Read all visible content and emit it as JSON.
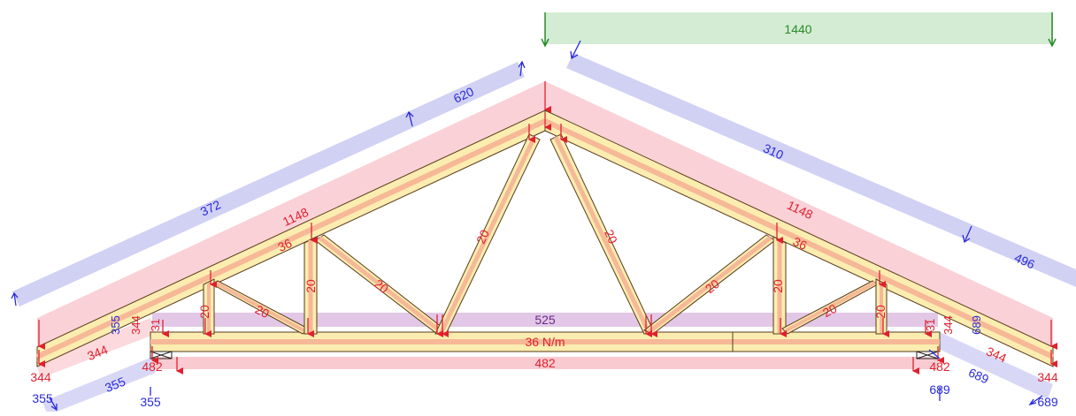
{
  "colors": {
    "timber_fill": "#fbedb0",
    "timber_center": "#f6b896",
    "timber_outline": "#5a3b1a",
    "compression_band": "#f7b9c1",
    "tension_band": "#b8b8ee",
    "load_band": "#c5e6c5",
    "load_red": "#e0202e",
    "load_blue": "#2a2adc",
    "load_green": "#2a8a2a",
    "support_color": "#222222"
  },
  "labels": {
    "top_load": "1440",
    "left_wind_upper": "620",
    "left_wind_lower": "372",
    "right_wind_upper": "310",
    "right_wind_lower": "496",
    "left_top_chord": "1148",
    "right_top_chord": "1148",
    "left_chord_member": "36",
    "right_chord_member": "36",
    "web_1": "20",
    "web_2": "20",
    "web_3": "20",
    "web_4": "20",
    "web_5": "20",
    "web_6": "20",
    "web_7": "20",
    "web_8": "20",
    "web_9": "20",
    "web_10": "20",
    "bottom_band": "525",
    "bottom_chord": "36 N/m",
    "bottom_reaction": "482",
    "left_support": "482",
    "right_support": "482",
    "left_overhang_1": "355",
    "left_overhang_2": "344",
    "left_overhang_3": "31",
    "left_overhang_4": "344",
    "left_overhang_5": "344",
    "left_overhang_6": "355",
    "left_overhang_7": "355",
    "left_overhang_8": "355",
    "right_overhang_1": "689",
    "right_overhang_2": "344",
    "right_overhang_3": "31",
    "right_overhang_4": "344",
    "right_overhang_5": "344",
    "right_overhang_6": "689",
    "right_overhang_7": "689",
    "right_overhang_8": "689"
  }
}
